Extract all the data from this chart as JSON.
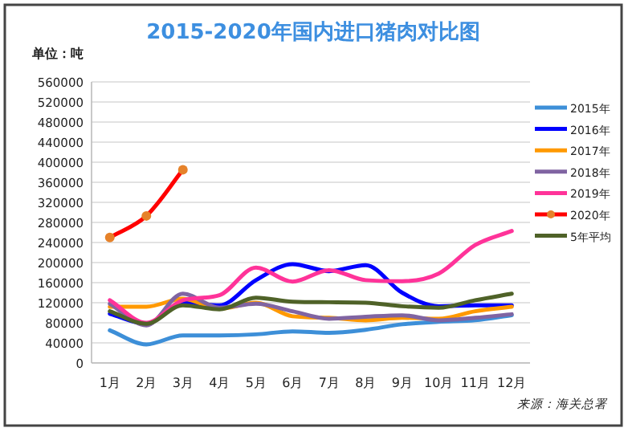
{
  "chart_data": {
    "type": "line",
    "title": "2015-2020年国内进口猪肉对比图",
    "ylabel": "单位：吨",
    "categories": [
      "1月",
      "2月",
      "3月",
      "4月",
      "5月",
      "6月",
      "7月",
      "8月",
      "9月",
      "10月",
      "11月",
      "12月"
    ],
    "ylim": [
      0,
      560000
    ],
    "yticks": [
      0,
      40000,
      80000,
      120000,
      160000,
      200000,
      240000,
      280000,
      320000,
      360000,
      400000,
      440000,
      480000,
      520000,
      560000
    ],
    "grid": "y",
    "legend": "right",
    "marker": "none",
    "line_style": "solid",
    "series": [
      {
        "name": "2015年",
        "color": "#3d8fd8",
        "values": [
          65000,
          37000,
          55000,
          55000,
          57000,
          63000,
          60000,
          66000,
          77000,
          82000,
          85000,
          95000
        ]
      },
      {
        "name": "2016年",
        "color": "#0000ff",
        "values": [
          98000,
          78000,
          120000,
          115000,
          165000,
          197000,
          183000,
          195000,
          140000,
          113000,
          115000,
          115000
        ]
      },
      {
        "name": "2017年",
        "color": "#ff9900",
        "values": [
          112000,
          112000,
          128000,
          108000,
          120000,
          93000,
          90000,
          85000,
          90000,
          88000,
          103000,
          112000
        ]
      },
      {
        "name": "2018年",
        "color": "#8064a2",
        "values": [
          118000,
          75000,
          138000,
          110000,
          118000,
          103000,
          88000,
          92000,
          95000,
          85000,
          90000,
          97000
        ]
      },
      {
        "name": "2019年",
        "color": "#ff3399",
        "values": [
          125000,
          80000,
          125000,
          135000,
          190000,
          162000,
          185000,
          165000,
          163000,
          178000,
          235000,
          263000
        ]
      },
      {
        "name": "2020年",
        "color": "#ff0000",
        "marker": "circle",
        "values": [
          250000,
          293000,
          385000,
          null,
          null,
          null,
          null,
          null,
          null,
          null,
          null,
          null
        ]
      },
      {
        "name": "5年平均",
        "color": "#4f6228",
        "values": [
          103000,
          78000,
          115000,
          107000,
          130000,
          122000,
          121000,
          120000,
          113000,
          110000,
          125000,
          138000
        ]
      }
    ],
    "annotations": [
      "来源：海关总署"
    ]
  }
}
